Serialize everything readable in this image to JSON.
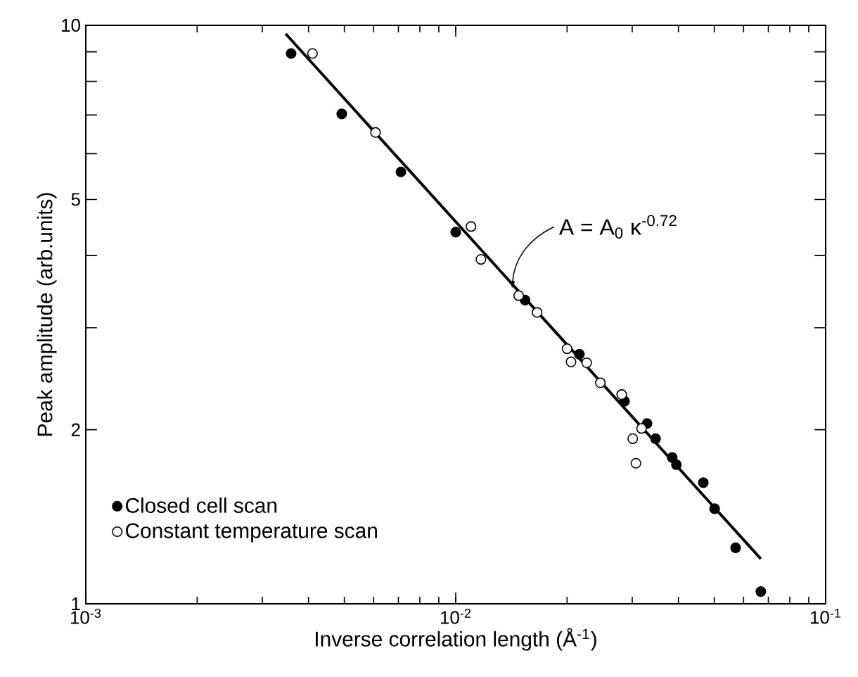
{
  "chart_data": {
    "type": "scatter",
    "xlabel": "Inverse correlation length (Å$^{-1}$)",
    "ylabel": "Peak amplitude (arb.units)",
    "log": "xy",
    "marker": "circle",
    "legend": "bottom left",
    "xlim": [
      0.001,
      0.1
    ],
    "ylim": [
      1,
      10
    ],
    "xticks": [
      {
        "value": 0.001,
        "label": "10$^{-3}$"
      },
      {
        "value": 0.01,
        "label": "10$^{-2}$"
      },
      {
        "value": 0.1,
        "label": "10$^{-1}$"
      }
    ],
    "yticks": [
      1,
      2,
      {
        "value": 3,
        "label": null
      },
      {
        "value": 4,
        "label": null
      },
      5,
      {
        "value": 6,
        "label": null
      },
      {
        "value": 7,
        "label": null
      },
      {
        "value": 8,
        "label": null
      },
      {
        "value": 9,
        "label": null
      },
      10
    ],
    "annotations": [
      {
        "text": "A = A$_{0}$ κ$^{-0.72}$",
        "x": 0.0142,
        "y": 3.51
      }
    ],
    "series": [
      {
        "name": "Closed cell scan",
        "color": "#000000",
        "x": [
          0.00359,
          0.00492,
          0.00711,
          0.01,
          0.0154,
          0.0216,
          0.0286,
          0.0329,
          0.0347,
          0.0385,
          0.0395,
          0.0467,
          0.0501,
          0.0571,
          0.0668
        ],
        "values": [
          8.94,
          7.03,
          5.58,
          4.39,
          3.35,
          2.7,
          2.24,
          2.05,
          1.93,
          1.79,
          1.74,
          1.62,
          1.46,
          1.25,
          1.05
        ]
      },
      {
        "name": "Constant temperature scan",
        "color": "#ffffff",
        "x": [
          0.0041,
          0.00607,
          0.011,
          0.0117,
          0.0148,
          0.0166,
          0.02,
          0.0205,
          0.0226,
          0.0246,
          0.0281,
          0.0318,
          0.0301,
          0.0307
        ],
        "values": [
          8.94,
          6.53,
          4.49,
          3.94,
          3.41,
          3.19,
          2.76,
          2.62,
          2.61,
          2.41,
          2.3,
          2.01,
          1.93,
          1.75
        ]
      },
      {
        "type": "line",
        "marker": "none",
        "color": "#000000",
        "x": [
          0.00347,
          0.0668
        ],
        "values": [
          9.67,
          1.196
        ]
      }
    ]
  }
}
